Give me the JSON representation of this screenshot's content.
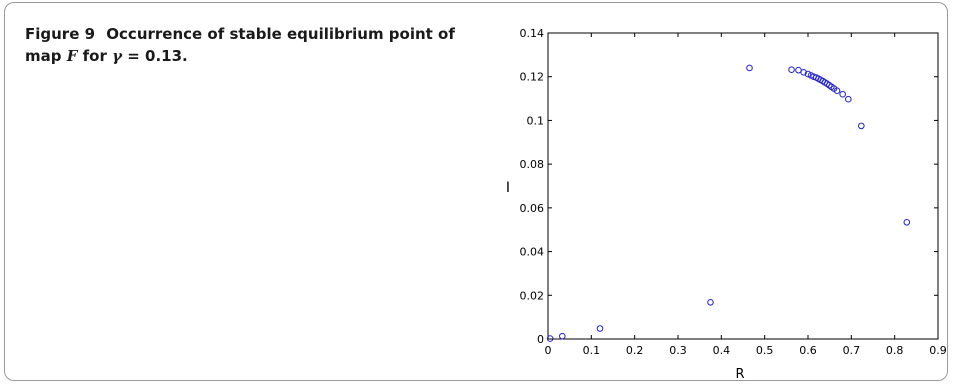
{
  "caption": {
    "label": "Figure 9",
    "text_before": "Occurrence of stable equilibrium point of map",
    "map_symbol": "F",
    "text_middle": "for",
    "gamma_symbol": "γ",
    "text_after": "= 0.13."
  },
  "chart_data": {
    "type": "scatter",
    "xlabel": "R",
    "ylabel": "I",
    "xlim": [
      0,
      0.9
    ],
    "ylim": [
      0,
      0.14
    ],
    "xticks": [
      "0",
      "0.1",
      "0.2",
      "0.3",
      "0.4",
      "0.5",
      "0.6",
      "0.7",
      "0.8",
      "0.9"
    ],
    "yticks": [
      "0",
      "0.02",
      "0.04",
      "0.06",
      "0.08",
      "0.1",
      "0.12",
      "0.14"
    ],
    "marker": "circle-open",
    "color": "#2222cc",
    "grid": false,
    "points": [
      [
        0.005,
        0.0002
      ],
      [
        0.033,
        0.0013
      ],
      [
        0.12,
        0.0048
      ],
      [
        0.375,
        0.0168
      ],
      [
        0.465,
        0.124
      ],
      [
        0.562,
        0.1232
      ],
      [
        0.578,
        0.123
      ],
      [
        0.59,
        0.122
      ],
      [
        0.6,
        0.1212
      ],
      [
        0.607,
        0.1206
      ],
      [
        0.613,
        0.12
      ],
      [
        0.619,
        0.1196
      ],
      [
        0.624,
        0.1191
      ],
      [
        0.629,
        0.1186
      ],
      [
        0.634,
        0.118
      ],
      [
        0.639,
        0.1174
      ],
      [
        0.644,
        0.1168
      ],
      [
        0.649,
        0.1161
      ],
      [
        0.654,
        0.1154
      ],
      [
        0.66,
        0.1146
      ],
      [
        0.667,
        0.1136
      ],
      [
        0.68,
        0.112
      ],
      [
        0.693,
        0.1097
      ],
      [
        0.723,
        0.0975
      ],
      [
        0.828,
        0.0534
      ]
    ]
  }
}
